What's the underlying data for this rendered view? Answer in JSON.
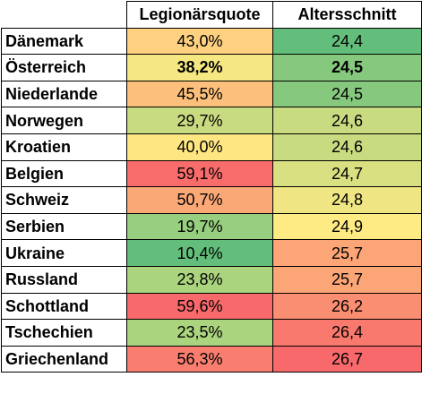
{
  "chart_data": {
    "type": "table",
    "columns": [
      "",
      "Legionärsquote",
      "Altersschnitt"
    ],
    "rows": [
      {
        "country": "Dänemark",
        "quote": "43,0%",
        "quote_color": "#FDD17F",
        "age": "24,4",
        "age_color": "#63BE7B",
        "bold": false
      },
      {
        "country": "Österreich",
        "quote": "38,2%",
        "quote_color": "#F5E883",
        "age": "24,5",
        "age_color": "#86C97E",
        "bold": true
      },
      {
        "country": "Niederlande",
        "quote": "45,5%",
        "quote_color": "#FDC07C",
        "age": "24,5",
        "age_color": "#86C97E",
        "bold": false
      },
      {
        "country": "Norwegen",
        "quote": "29,7%",
        "quote_color": "#C8DB80",
        "age": "24,6",
        "age_color": "#C8DB80",
        "bold": false
      },
      {
        "country": "Kroatien",
        "quote": "40,0%",
        "quote_color": "#FEE783",
        "age": "24,6",
        "age_color": "#C8DB80",
        "bold": false
      },
      {
        "country": "Belgien",
        "quote": "59,1%",
        "quote_color": "#F86C6B",
        "age": "24,7",
        "age_color": "#D9E082",
        "bold": false
      },
      {
        "country": "Schweiz",
        "quote": "50,7%",
        "quote_color": "#FBA877",
        "age": "24,8",
        "age_color": "#EFE583",
        "bold": false
      },
      {
        "country": "Serbien",
        "quote": "19,7%",
        "quote_color": "#97CE7F",
        "age": "24,9",
        "age_color": "#FFEB84",
        "bold": false
      },
      {
        "country": "Ukraine",
        "quote": "10,4%",
        "quote_color": "#63BE7B",
        "age": "25,7",
        "age_color": "#FCA576",
        "bold": false
      },
      {
        "country": "Russland",
        "quote": "23,8%",
        "quote_color": "#ABD47F",
        "age": "25,7",
        "age_color": "#FCA576",
        "bold": false
      },
      {
        "country": "Schottland",
        "quote": "59,6%",
        "quote_color": "#F8696B",
        "age": "26,2",
        "age_color": "#FA8E72",
        "bold": false
      },
      {
        "country": "Tschechien",
        "quote": "23,5%",
        "quote_color": "#ABD47F",
        "age": "26,4",
        "age_color": "#F9796E",
        "bold": false
      },
      {
        "country": "Griechenland",
        "quote": "56,3%",
        "quote_color": "#F97E6F",
        "age": "26,7",
        "age_color": "#F8696B",
        "bold": false
      }
    ]
  }
}
